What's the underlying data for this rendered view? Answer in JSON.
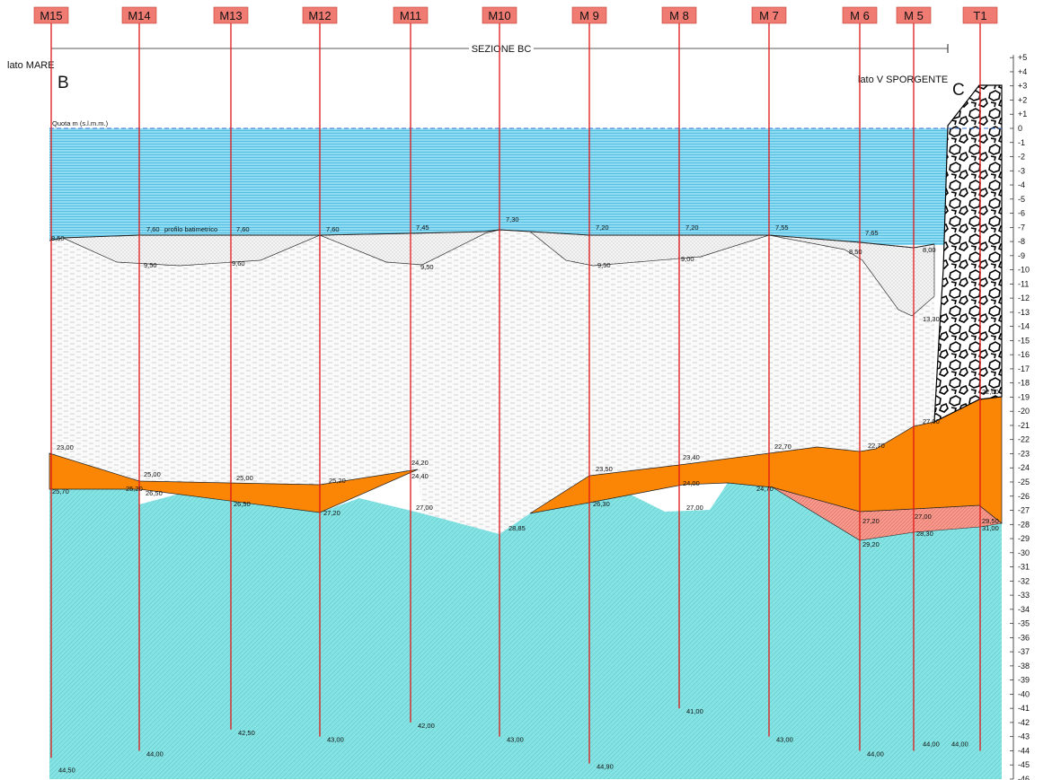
{
  "header": {
    "section": "SEZIONE BC",
    "left_side": "lato MARE",
    "left_letter": "B",
    "right_side": "lato V SPORGENTE",
    "right_letter": "C",
    "datum": "Quota m (s.l.m.m.)",
    "profile": "profilo batimetrico"
  },
  "scale": {
    "ticks": [
      {
        "value": 5,
        "label": "+5"
      },
      {
        "value": 4,
        "label": "+4"
      },
      {
        "value": 3,
        "label": "+3"
      },
      {
        "value": 2,
        "label": "+2"
      },
      {
        "value": 1,
        "label": "+1"
      },
      0,
      -1,
      -2,
      -3,
      -4,
      -5,
      -6,
      -7,
      -8,
      -9,
      -10,
      -11,
      -12,
      -13,
      -14,
      -15,
      -16,
      -17,
      -18,
      -19,
      -20,
      -21,
      -22,
      -23,
      -24,
      -25,
      -26,
      -27,
      -28,
      -29,
      -30,
      -31,
      -32,
      -33,
      -34,
      -35,
      -36,
      -37,
      -38,
      -39,
      -40,
      -41,
      -42,
      -43,
      -44,
      -45,
      -46
    ]
  },
  "boreholes": [
    {
      "name": "M15",
      "depth": "44,50"
    },
    {
      "name": "M14",
      "depth": "44,00"
    },
    {
      "name": "M13",
      "depth": "42,50"
    },
    {
      "name": "M12",
      "depth": "43,00"
    },
    {
      "name": "M11",
      "depth": "42,00"
    },
    {
      "name": "M10",
      "depth": "43,00"
    },
    {
      "name": "M 9",
      "depth": "44,90"
    },
    {
      "name": "M 8",
      "depth": "41,00"
    },
    {
      "name": "M 7",
      "depth": "43,00"
    },
    {
      "name": "M 6",
      "depth": "44,00"
    },
    {
      "name": "M 5",
      "depth": "44,00"
    },
    {
      "name": "T1",
      "depth": "44,00"
    }
  ],
  "labels": [
    "8,50",
    "7,60",
    "7,60",
    "7,60",
    "7,45",
    "7,30",
    "7,20",
    "7,20",
    "7,55",
    "7,65",
    "8,00",
    "9,50",
    "9,60",
    "9,50",
    "9,50",
    "9,00",
    "8,50",
    "13,30",
    "23,00",
    "25,00",
    "25,00",
    "25,20",
    "24,20",
    "24,40",
    "23,50",
    "23,40",
    "22,70",
    "22,70",
    "27,00",
    "22,00",
    "25,70",
    "25,20",
    "26,50",
    "26,50",
    "27,20",
    "27,00",
    "28,85",
    "26,30",
    "24,00",
    "27,00",
    "24,70",
    "27,20",
    "27,00",
    "29,50",
    "29,20",
    "28,30",
    "31,00"
  ]
}
